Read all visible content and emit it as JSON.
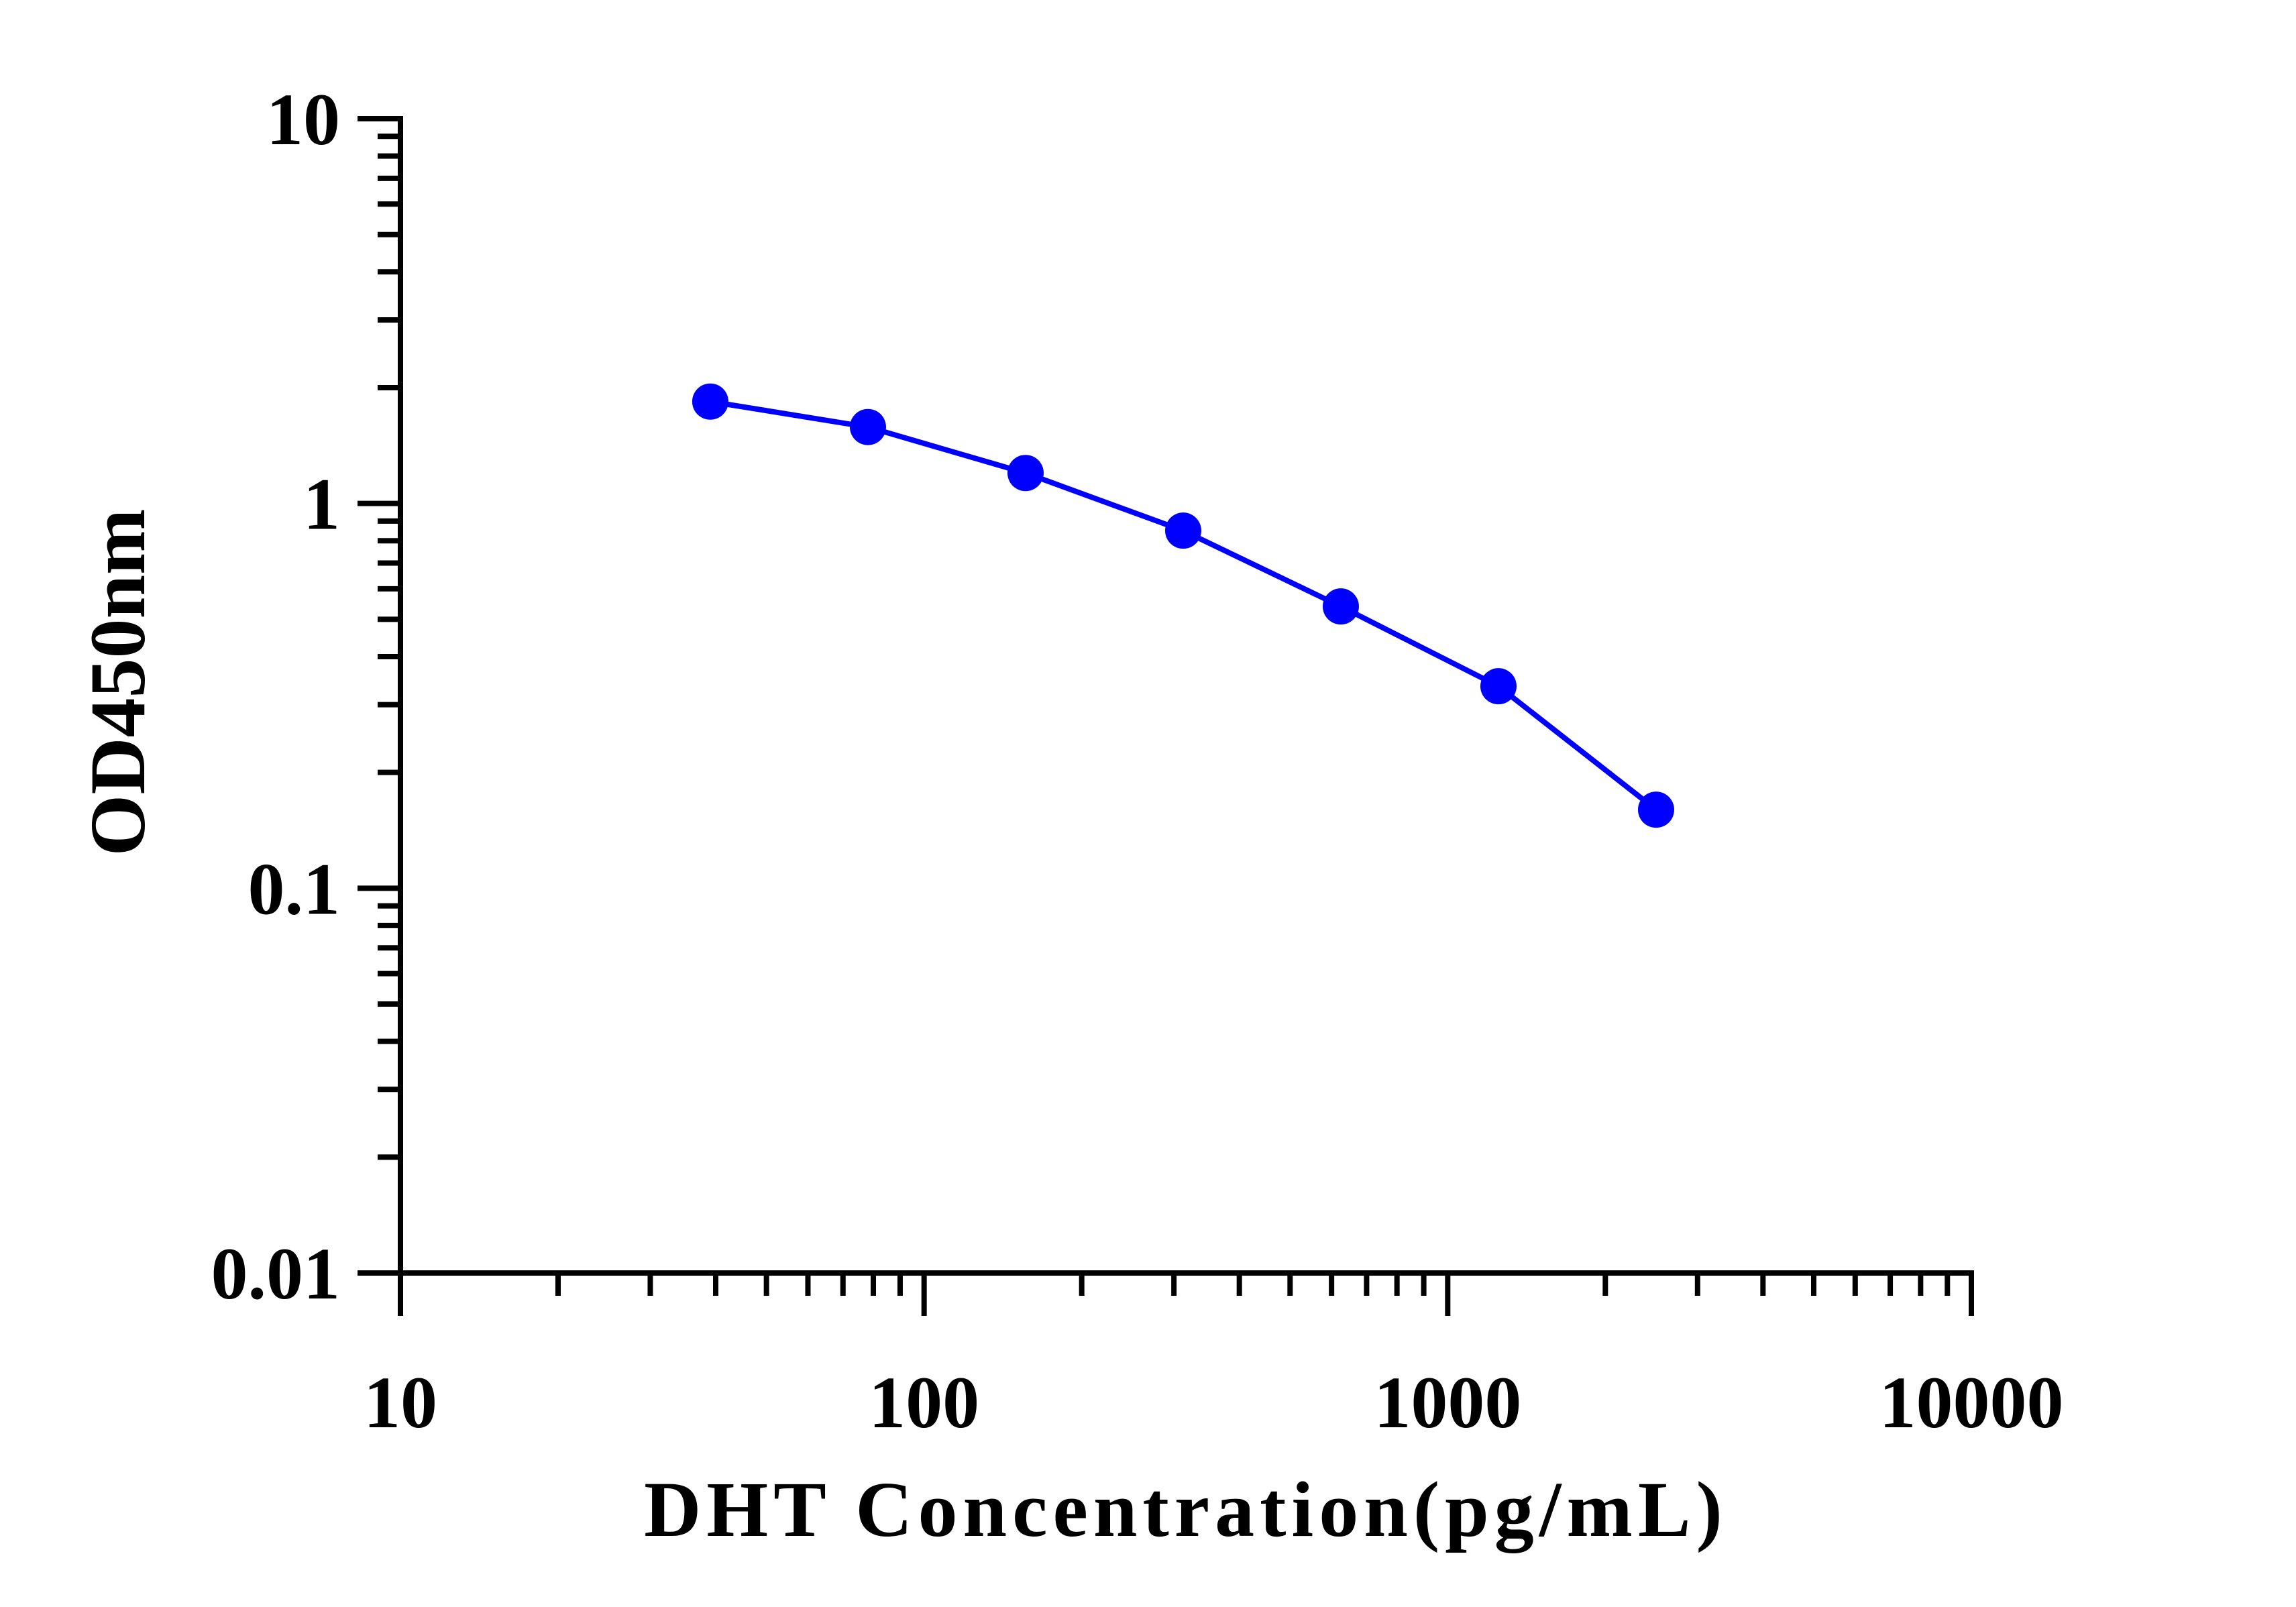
{
  "chart_data": {
    "type": "line",
    "x_scale": "log",
    "y_scale": "log",
    "xlabel": "DHT Concentration(pg/mL)",
    "ylabel": "OD450nm",
    "xlim": [
      10,
      10000
    ],
    "ylim": [
      0.01,
      10
    ],
    "x_ticks": [
      10,
      100,
      1000,
      10000
    ],
    "x_tick_labels": [
      "10",
      "100",
      "1000",
      "10000"
    ],
    "y_ticks": [
      0.01,
      0.1,
      1,
      10
    ],
    "y_tick_labels": [
      "0.01",
      "0.1",
      "1",
      "10"
    ],
    "grid": false,
    "series": [
      {
        "color": "#0000ff",
        "marker": "circle",
        "x": [
          39.06,
          78.13,
          156.25,
          312.5,
          625,
          1250,
          2500
        ],
        "y": [
          1.84,
          1.58,
          1.2,
          0.85,
          0.54,
          0.335,
          0.16
        ]
      }
    ]
  }
}
